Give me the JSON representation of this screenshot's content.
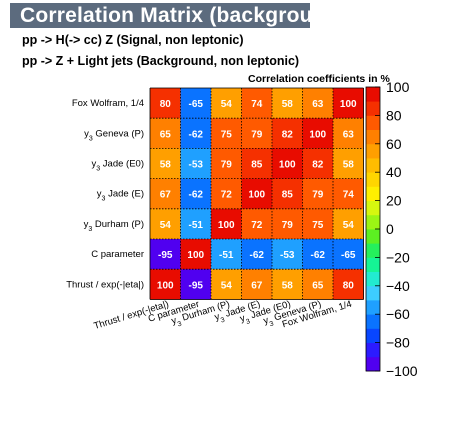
{
  "header": {
    "title": "Correlation Matrix (background)",
    "line1": "pp -> H(-> cc) Z (Signal, non leptonic)",
    "line2": "pp -> Z + Light  jets (Background, non leptonic)",
    "z_title": "Correlation coefficients in %"
  },
  "chart_data": {
    "type": "heatmap",
    "title": "Correlation Matrix (background)",
    "variables": [
      {
        "base": "Thrust / exp(-|eta|)",
        "sub": "",
        "tail": ""
      },
      {
        "base": "C parameter",
        "sub": "",
        "tail": ""
      },
      {
        "base": "y",
        "sub": "3",
        "tail": " Durham (P)"
      },
      {
        "base": "y",
        "sub": "3",
        "tail": " Jade (E)"
      },
      {
        "base": "y",
        "sub": "3",
        "tail": " Jade (E0)"
      },
      {
        "base": "y",
        "sub": "3",
        "tail": " Geneva (P)"
      },
      {
        "base": "Fox Wolfram, 1/4",
        "sub": "",
        "tail": ""
      }
    ],
    "rows_top_to_bottom": [
      [
        80,
        -65,
        54,
        74,
        58,
        63,
        100
      ],
      [
        65,
        -62,
        75,
        79,
        82,
        100,
        63
      ],
      [
        58,
        -53,
        79,
        85,
        100,
        82,
        58
      ],
      [
        67,
        -62,
        72,
        100,
        85,
        79,
        74
      ],
      [
        54,
        -51,
        100,
        72,
        79,
        75,
        54
      ],
      [
        -95,
        100,
        -51,
        -62,
        -53,
        -62,
        -65
      ],
      [
        100,
        -95,
        54,
        67,
        58,
        65,
        80
      ]
    ],
    "z_range": [
      -100,
      100
    ],
    "colorbar_ticks": [
      100,
      80,
      60,
      40,
      20,
      0,
      -20,
      -40,
      -60,
      -80,
      -100
    ],
    "colorbar_tick_labels": [
      "100",
      "80",
      "60",
      "40",
      "20",
      "0",
      "−20",
      "−40",
      "−60",
      "−80",
      "−100"
    ],
    "colorbar_title": "Correlation coefficients in %",
    "palette_bins_low_to_high": [
      "#5000f0",
      "#2c1bff",
      "#0846ff",
      "#0a73ff",
      "#1fa0ff",
      "#3dcdff",
      "#22ebd0",
      "#15f595",
      "#25f05c",
      "#5cf022",
      "#9bf514",
      "#d6f70f",
      "#ffef00",
      "#ffd600",
      "#ffbd00",
      "#ff9f00",
      "#ff8000",
      "#ff5a00",
      "#f53000",
      "#e80c00"
    ]
  }
}
